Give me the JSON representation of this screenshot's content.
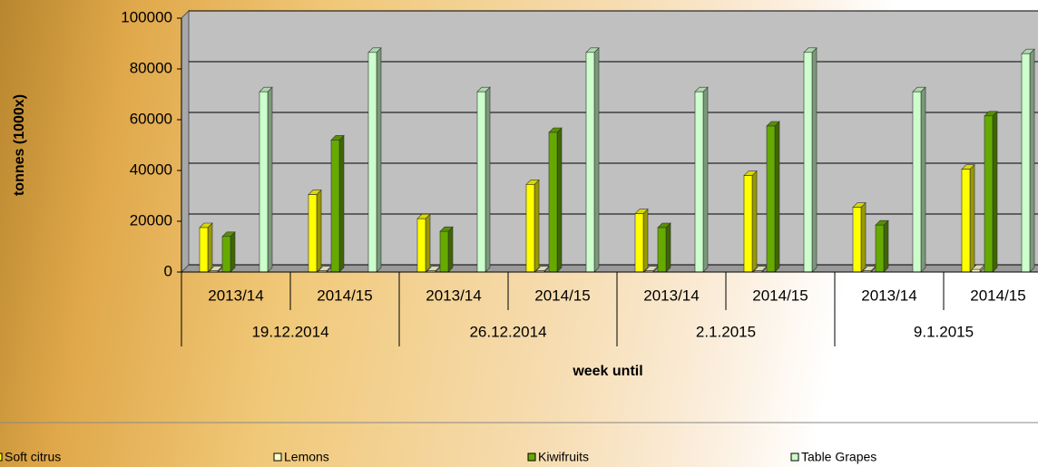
{
  "chart_data": {
    "type": "bar3d",
    "y_label": "tonnes (1000x)",
    "x_label": "week until",
    "categories": [
      "2013/14",
      "2014/15",
      "2013/14",
      "2014/15",
      "2013/14",
      "2014/15",
      "2013/14",
      "2014/15"
    ],
    "groups": [
      "19.12.2014",
      "26.12.2014",
      "2.1.2015",
      "9.1.2015"
    ],
    "series": [
      {
        "name": "Soft citrus",
        "color": "#ffff00",
        "values": [
          17500,
          30500,
          21000,
          34500,
          23000,
          38000,
          25500,
          40500
        ]
      },
      {
        "name": "Lemons",
        "color": "#ffffcc",
        "values": [
          500,
          500,
          500,
          500,
          500,
          500,
          500,
          1000
        ]
      },
      {
        "name": "Kiwifruits",
        "color": "#66aa00",
        "values": [
          14000,
          52000,
          16000,
          55000,
          17500,
          57500,
          18500,
          61500
        ]
      },
      {
        "name": "Table Grapes",
        "color": "#ccffcc",
        "values": [
          71000,
          86500,
          71000,
          86500,
          71000,
          86500,
          71000,
          86000
        ]
      }
    ],
    "ylim": [
      0,
      100000
    ],
    "yticks": [
      0,
      20000,
      40000,
      60000,
      80000,
      100000
    ],
    "grid": true
  }
}
